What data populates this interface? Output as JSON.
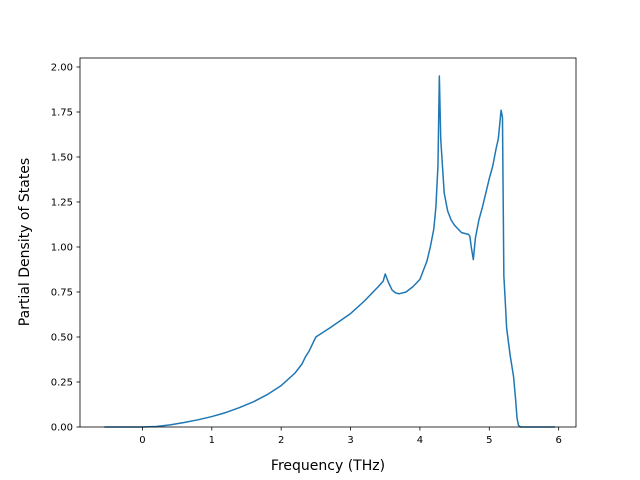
{
  "chart_data": {
    "type": "line",
    "title": "",
    "xlabel": "Frequency (THz)",
    "ylabel": "Partial Density of States",
    "xlim": [
      -0.9,
      6.25
    ],
    "ylim": [
      0.0,
      2.05
    ],
    "xticks": [
      0,
      1,
      2,
      3,
      4,
      5,
      6
    ],
    "yticks": [
      0.0,
      0.25,
      0.5,
      0.75,
      1.0,
      1.25,
      1.5,
      1.75,
      2.0
    ],
    "xtick_labels": [
      "0",
      "1",
      "2",
      "3",
      "4",
      "5",
      "6"
    ],
    "ytick_labels": [
      "0.00",
      "0.25",
      "0.50",
      "0.75",
      "1.00",
      "1.25",
      "1.50",
      "1.75",
      "2.00"
    ],
    "grid": false,
    "line_color": "#1f77b4",
    "series": [
      {
        "x": [
          -0.55,
          0.0,
          0.2,
          0.4,
          0.6,
          0.8,
          1.0,
          1.2,
          1.4,
          1.6,
          1.8,
          2.0,
          2.2,
          2.3,
          2.35,
          2.4,
          2.5,
          2.7,
          3.0,
          3.2,
          3.4,
          3.47,
          3.5,
          3.55,
          3.6,
          3.65,
          3.7,
          3.8,
          3.9,
          4.0,
          4.05,
          4.1,
          4.15,
          4.2,
          4.23,
          4.26,
          4.28,
          4.3,
          4.35,
          4.4,
          4.45,
          4.5,
          4.55,
          4.6,
          4.65,
          4.7,
          4.72,
          4.74,
          4.77,
          4.8,
          4.85,
          4.9,
          4.95,
          5.0,
          5.05,
          5.1,
          5.13,
          5.15,
          5.17,
          5.19,
          5.21,
          5.23,
          5.25,
          5.3,
          5.35,
          5.38,
          5.4,
          5.42,
          5.45,
          5.95
        ],
        "y": [
          0.0,
          0.0,
          0.003,
          0.012,
          0.025,
          0.04,
          0.058,
          0.08,
          0.108,
          0.14,
          0.18,
          0.23,
          0.3,
          0.35,
          0.39,
          0.42,
          0.5,
          0.55,
          0.63,
          0.7,
          0.78,
          0.81,
          0.85,
          0.8,
          0.76,
          0.745,
          0.74,
          0.75,
          0.78,
          0.82,
          0.87,
          0.92,
          1.0,
          1.1,
          1.22,
          1.45,
          1.95,
          1.6,
          1.3,
          1.2,
          1.15,
          1.12,
          1.1,
          1.08,
          1.075,
          1.07,
          1.06,
          1.0,
          0.93,
          1.05,
          1.15,
          1.22,
          1.3,
          1.38,
          1.45,
          1.55,
          1.6,
          1.68,
          1.76,
          1.72,
          0.84,
          0.7,
          0.55,
          0.4,
          0.28,
          0.15,
          0.05,
          0.01,
          0.0,
          0.0
        ]
      }
    ]
  }
}
